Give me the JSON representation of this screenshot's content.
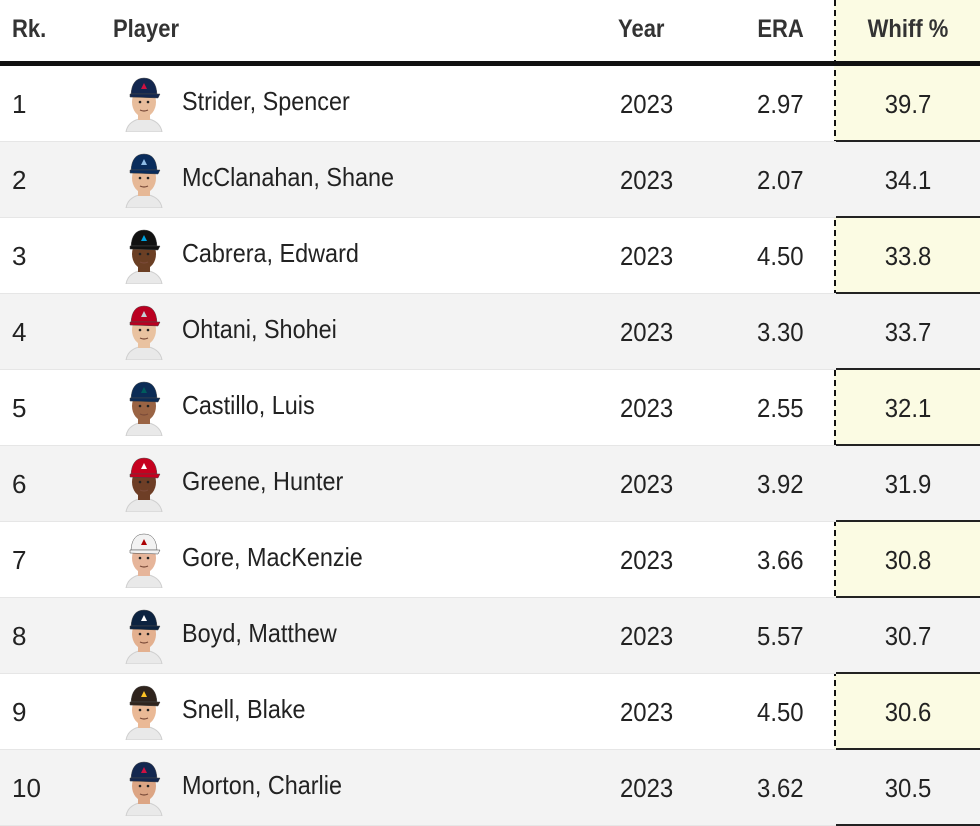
{
  "columns": {
    "rank": "Rk.",
    "player": "Player",
    "year": "Year",
    "era": "ERA",
    "whiff": "Whiff %"
  },
  "rows": [
    {
      "rank": "1",
      "name": "Strider, Spencer",
      "year": "2023",
      "era": "2.97",
      "whiff": "39.7",
      "cap_color": "#13274f",
      "cap_logo": "#ce1141",
      "skin": "#e8bd9c"
    },
    {
      "rank": "2",
      "name": "McClanahan, Shane",
      "year": "2023",
      "era": "2.07",
      "whiff": "34.1",
      "cap_color": "#092c5c",
      "cap_logo": "#8fbce6",
      "skin": "#e6b896"
    },
    {
      "rank": "3",
      "name": "Cabrera, Edward",
      "year": "2023",
      "era": "4.50",
      "whiff": "33.8",
      "cap_color": "#111111",
      "cap_logo": "#00a3e0",
      "skin": "#6b3f24"
    },
    {
      "rank": "4",
      "name": "Ohtani, Shohei",
      "year": "2023",
      "era": "3.30",
      "whiff": "33.7",
      "cap_color": "#ba0021",
      "cap_logo": "#c4ced4",
      "skin": "#e9c2a0"
    },
    {
      "rank": "5",
      "name": "Castillo, Luis",
      "year": "2023",
      "era": "2.55",
      "whiff": "32.1",
      "cap_color": "#0c2c56",
      "cap_logo": "#005c5c",
      "skin": "#9a6444"
    },
    {
      "rank": "6",
      "name": "Greene, Hunter",
      "year": "2023",
      "era": "3.92",
      "whiff": "31.9",
      "cap_color": "#c6011f",
      "cap_logo": "#ffffff",
      "skin": "#6e3e26"
    },
    {
      "rank": "7",
      "name": "Gore, MacKenzie",
      "year": "2023",
      "era": "3.66",
      "whiff": "30.8",
      "cap_color": "#f2f2f2",
      "cap_logo": "#ab0003",
      "skin": "#e6b59a"
    },
    {
      "rank": "8",
      "name": "Boyd, Matthew",
      "year": "2023",
      "era": "5.57",
      "whiff": "30.7",
      "cap_color": "#0c2340",
      "cap_logo": "#ffffff",
      "skin": "#e3b08f"
    },
    {
      "rank": "9",
      "name": "Snell, Blake",
      "year": "2023",
      "era": "4.50",
      "whiff": "30.6",
      "cap_color": "#2f241d",
      "cap_logo": "#ffc425",
      "skin": "#eab996"
    },
    {
      "rank": "10",
      "name": "Morton, Charlie",
      "year": "2023",
      "era": "3.62",
      "whiff": "30.5",
      "cap_color": "#13274f",
      "cap_logo": "#ce1141",
      "skin": "#dca584"
    }
  ]
}
